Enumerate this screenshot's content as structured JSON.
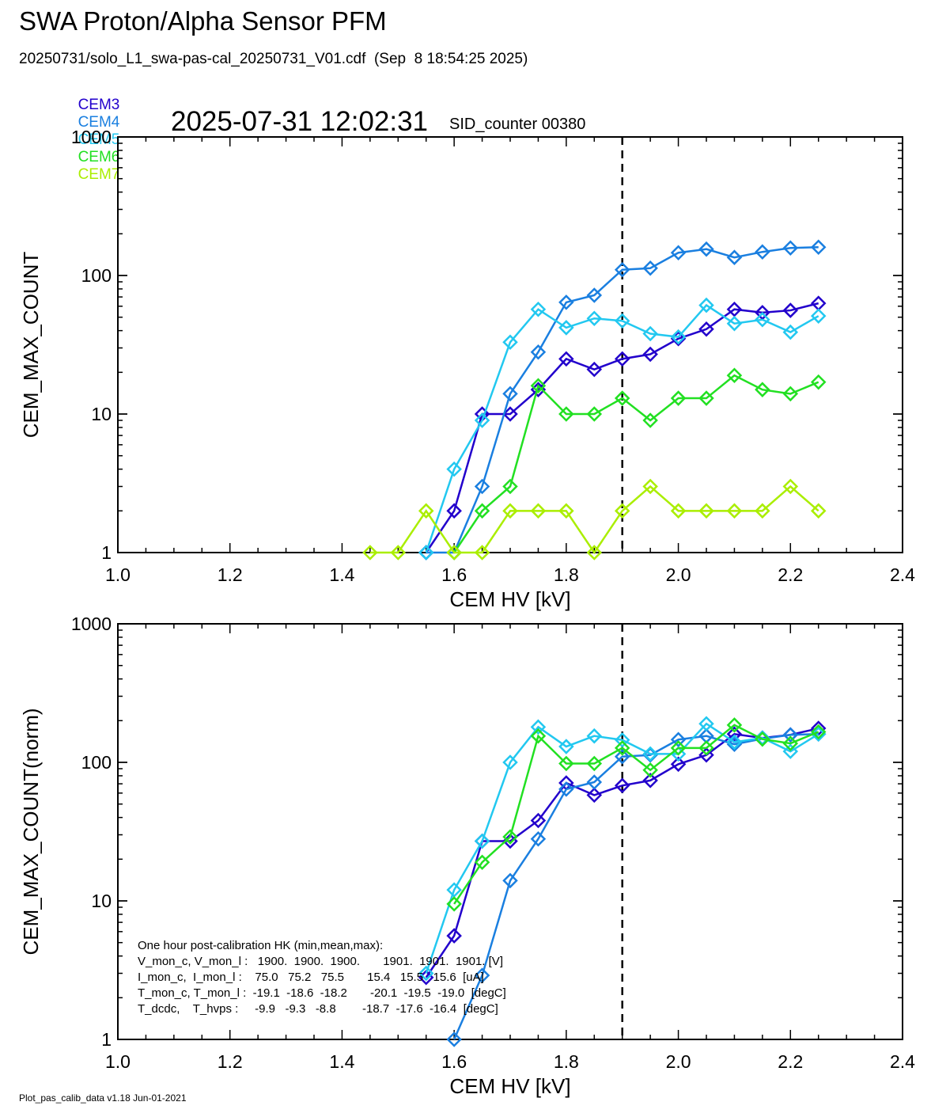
{
  "header": {
    "title": "SWA Proton/Alpha Sensor PFM",
    "subtitle": "20250731/solo_L1_swa-pas-cal_20250731_V01.cdf  (Sep  8 18:54:25 2025)",
    "timestamp": "2025-07-31 12:02:31",
    "sid_label": "SID_counter 00380"
  },
  "legend": [
    {
      "name": "CEM3",
      "color": "#2200cc"
    },
    {
      "name": "CEM4",
      "color": "#1a7fe0"
    },
    {
      "name": "CEM5",
      "color": "#22c8f0"
    },
    {
      "name": "CEM6",
      "color": "#22e022"
    },
    {
      "name": "CEM7",
      "color": "#aaee00"
    }
  ],
  "footer": "Plot_pas_calib_data v1.18 Jun-01-2021",
  "hk_text": [
    "One hour post-calibration HK (min,mean,max):",
    "V_mon_c, V_mon_l :   1900.  1900.  1900.       1901.  1901.  1901. [V]",
    "I_mon_c,  I_mon_l :    75.0   75.2   75.5       15.4   15.5   15.6  [uA]",
    "T_mon_c, T_mon_l :  -19.1  -18.6  -18.2       -20.1  -19.5  -19.0  [degC]",
    "T_dcdc,    T_hvps :     -9.9   -9.3   -8.8        -18.7  -17.6  -16.4  [degC]"
  ],
  "chart_data": [
    {
      "type": "line",
      "xlabel": "CEM HV [kV]",
      "ylabel": "CEM_MAX_COUNT",
      "xlim": [
        1.0,
        2.4
      ],
      "ylim": [
        1,
        1000
      ],
      "yscale": "log",
      "x_ticks": [
        "1.0",
        "1.2",
        "1.4",
        "1.6",
        "1.8",
        "2.0",
        "2.2",
        "2.4"
      ],
      "y_ticks": [
        "1",
        "10",
        "100",
        "1000"
      ],
      "vline_x": 1.9,
      "series": [
        {
          "name": "CEM3",
          "color": "#2200cc",
          "x": [
            1.55,
            1.6,
            1.65,
            1.7,
            1.75,
            1.8,
            1.85,
            1.9,
            1.95,
            2.0,
            2.05,
            2.1,
            2.15,
            2.2,
            2.25
          ],
          "values": [
            1,
            2,
            10,
            10,
            15,
            25,
            21,
            25,
            27,
            35,
            41,
            57,
            54,
            56,
            63
          ]
        },
        {
          "name": "CEM4",
          "color": "#1a7fe0",
          "x": [
            1.55,
            1.6,
            1.65,
            1.7,
            1.75,
            1.8,
            1.85,
            1.9,
            1.95,
            2.0,
            2.05,
            2.1,
            2.15,
            2.2,
            2.25
          ],
          "values": [
            1,
            1,
            3,
            14,
            28,
            64,
            72,
            110,
            113,
            146,
            155,
            135,
            148,
            158,
            160
          ]
        },
        {
          "name": "CEM5",
          "color": "#22c8f0",
          "x": [
            1.55,
            1.6,
            1.65,
            1.7,
            1.75,
            1.8,
            1.85,
            1.9,
            1.95,
            2.0,
            2.05,
            2.1,
            2.15,
            2.2,
            2.25
          ],
          "values": [
            1,
            4,
            9,
            33,
            57,
            42,
            49,
            47,
            38,
            36,
            61,
            45,
            48,
            39,
            51
          ]
        },
        {
          "name": "CEM6",
          "color": "#22e022",
          "x": [
            1.6,
            1.65,
            1.7,
            1.75,
            1.8,
            1.85,
            1.9,
            1.95,
            2.0,
            2.05,
            2.1,
            2.15,
            2.2,
            2.25
          ],
          "values": [
            1,
            2,
            3,
            16,
            10,
            10,
            13,
            9,
            13,
            13,
            19,
            15,
            14,
            17
          ]
        },
        {
          "name": "CEM7",
          "color": "#aaee00",
          "x": [
            1.45,
            1.5,
            1.55,
            1.6,
            1.65,
            1.7,
            1.75,
            1.8,
            1.85,
            1.9,
            1.95,
            2.0,
            2.05,
            2.1,
            2.15,
            2.2,
            2.25
          ],
          "values": [
            1,
            1,
            2,
            1,
            1,
            2,
            2,
            2,
            1,
            2,
            3,
            2,
            2,
            2,
            2,
            3,
            2
          ]
        }
      ]
    },
    {
      "type": "line",
      "xlabel": "CEM HV [kV]",
      "ylabel": "CEM_MAX_COUNT(norm)",
      "xlim": [
        1.0,
        2.4
      ],
      "ylim": [
        1,
        1000
      ],
      "yscale": "log",
      "x_ticks": [
        "1.0",
        "1.2",
        "1.4",
        "1.6",
        "1.8",
        "2.0",
        "2.2",
        "2.4"
      ],
      "y_ticks": [
        "1",
        "10",
        "100",
        "1000"
      ],
      "vline_x": 1.9,
      "series": [
        {
          "name": "CEM3",
          "color": "#2200cc",
          "x": [
            1.55,
            1.6,
            1.65,
            1.7,
            1.75,
            1.8,
            1.85,
            1.9,
            1.95,
            2.0,
            2.05,
            2.1,
            2.15,
            2.2,
            2.25
          ],
          "values": [
            2.8,
            5.6,
            27,
            27,
            38,
            71,
            58,
            68,
            74,
            97,
            113,
            160,
            150,
            158,
            176
          ]
        },
        {
          "name": "CEM4",
          "color": "#1a7fe0",
          "x": [
            1.6,
            1.65,
            1.7,
            1.75,
            1.8,
            1.85,
            1.9,
            1.95,
            2.0,
            2.05,
            2.1,
            2.15,
            2.2,
            2.25
          ],
          "values": [
            1,
            2.9,
            14,
            28,
            64,
            72,
            110,
            113,
            146,
            155,
            135,
            148,
            158,
            160
          ]
        },
        {
          "name": "CEM5",
          "color": "#22c8f0",
          "x": [
            1.55,
            1.6,
            1.65,
            1.7,
            1.75,
            1.8,
            1.85,
            1.9,
            1.95,
            2.0,
            2.05,
            2.1,
            2.15,
            2.2,
            2.25
          ],
          "values": [
            3,
            12,
            27,
            100,
            180,
            130,
            155,
            145,
            115,
            115,
            190,
            140,
            150,
            120,
            160
          ]
        },
        {
          "name": "CEM6",
          "color": "#22e022",
          "x": [
            1.6,
            1.65,
            1.7,
            1.75,
            1.8,
            1.85,
            1.9,
            1.95,
            2.0,
            2.05,
            2.1,
            2.15,
            2.2,
            2.25
          ],
          "values": [
            9.5,
            19,
            29,
            155,
            98,
            98,
            127,
            88,
            127,
            127,
            186,
            147,
            137,
            166
          ]
        }
      ]
    }
  ]
}
